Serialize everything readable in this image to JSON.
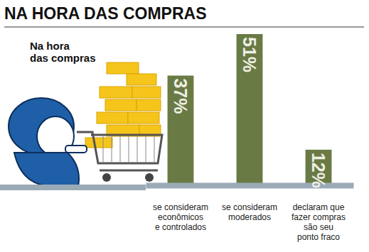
{
  "chart_data": {
    "type": "bar",
    "title": "NA HORA DAS COMPRAS",
    "subtitle": "Na hora\ndas compras",
    "categories": [
      "se consideram\neconômicos\ne controlados",
      "se consideram\nmoderados",
      "declaram que\nfazer compras\nsão seu\nponto fraco"
    ],
    "values": [
      37,
      51,
      12
    ],
    "value_labels": [
      "37%",
      "51%",
      "12%"
    ],
    "data_labels": true,
    "color": "#6a7a45",
    "ylim": [
      0,
      51
    ],
    "tick_labels": false,
    "grid": false
  }
}
